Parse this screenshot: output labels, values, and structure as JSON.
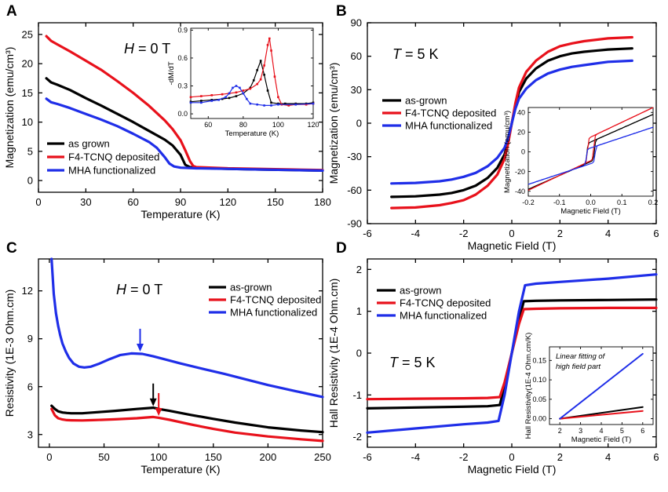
{
  "colors": {
    "black": "#000000",
    "red": "#e8111b",
    "blue": "#1f2ee8",
    "frame": "#000000"
  },
  "panels": [
    {
      "id": "A",
      "label": "A",
      "annotation": {
        "prefix": "H",
        "suffix": " = 0 T"
      }
    },
    {
      "id": "B",
      "label": "B",
      "annotation": {
        "prefix": "T",
        "suffix": " = 5 K"
      }
    },
    {
      "id": "C",
      "label": "C",
      "annotation": {
        "prefix": "H",
        "suffix": " = 0 T"
      }
    },
    {
      "id": "D",
      "label": "D",
      "annotation": {
        "prefix": "T",
        "suffix": " = 5 K"
      }
    }
  ],
  "chart_data": [
    {
      "panel": "A",
      "type": "line",
      "xlabel": "Temperature (K)",
      "ylabel": "Magnetization (emu/cm³)",
      "xlim": [
        0,
        180
      ],
      "ylim": [
        -2,
        27
      ],
      "xticks": [
        0,
        30,
        60,
        90,
        120,
        150,
        180
      ],
      "yticks": [
        0,
        5,
        10,
        15,
        20,
        25
      ],
      "legend_position": "lower-left",
      "series": [
        {
          "name": "as grown",
          "color": "black",
          "x": [
            5,
            8,
            12,
            20,
            30,
            40,
            50,
            60,
            70,
            80,
            85,
            90,
            93,
            96,
            100,
            110,
            120,
            140,
            160,
            180
          ],
          "y": [
            17.5,
            16.8,
            16.4,
            15.5,
            14.1,
            12.8,
            11.4,
            10.0,
            8.5,
            7.0,
            6.0,
            4.4,
            2.7,
            2.3,
            2.2,
            2.1,
            2.0,
            1.9,
            1.8,
            1.7
          ]
        },
        {
          "name": "F4-TCNQ deposited",
          "color": "red",
          "x": [
            5,
            8,
            12,
            20,
            30,
            40,
            50,
            60,
            70,
            80,
            85,
            90,
            93,
            96,
            98,
            100,
            110,
            120,
            140,
            160,
            180
          ],
          "y": [
            24.7,
            23.9,
            23.3,
            22.1,
            20.5,
            18.9,
            17.0,
            15.0,
            12.8,
            10.3,
            8.8,
            6.9,
            5.2,
            3.3,
            2.5,
            2.3,
            2.2,
            2.1,
            2.0,
            1.9,
            1.8
          ]
        },
        {
          "name": "MHA functionalized",
          "color": "blue",
          "x": [
            5,
            8,
            12,
            20,
            30,
            40,
            50,
            60,
            70,
            75,
            80,
            83,
            86,
            90,
            100,
            120,
            140,
            160,
            180
          ],
          "y": [
            14.0,
            13.4,
            13.1,
            12.4,
            11.4,
            10.4,
            9.3,
            8.0,
            6.6,
            5.6,
            4.0,
            2.9,
            2.4,
            2.2,
            2.1,
            2.0,
            1.9,
            1.8,
            1.7
          ]
        }
      ],
      "inset": {
        "xlabel": "Temperature (K)",
        "ylabel": "-dM/dT",
        "xlim": [
          50,
          120
        ],
        "ylim": [
          -0.05,
          0.92
        ],
        "xticks": [
          60,
          80,
          100,
          120
        ],
        "yticks": [
          0.0,
          0.3,
          0.6,
          0.9
        ],
        "series": [
          {
            "name": "as grown",
            "color": "black",
            "x": [
              50,
              56,
              62,
              68,
              72,
              76,
              80,
              84,
              86,
              88,
              90,
              92,
              94,
              96,
              100,
              104,
              110,
              116,
              120
            ],
            "y": [
              0.13,
              0.14,
              0.15,
              0.16,
              0.17,
              0.19,
              0.22,
              0.28,
              0.36,
              0.47,
              0.57,
              0.42,
              0.25,
              0.12,
              0.11,
              0.11,
              0.11,
              0.11,
              0.12
            ]
          },
          {
            "name": "F4-TCNQ deposited",
            "color": "red",
            "x": [
              50,
              56,
              62,
              68,
              72,
              76,
              80,
              84,
              88,
              90,
              92,
              94,
              95,
              96,
              98,
              100,
              102,
              106,
              110,
              116,
              120
            ],
            "y": [
              0.18,
              0.19,
              0.2,
              0.21,
              0.22,
              0.23,
              0.25,
              0.27,
              0.32,
              0.37,
              0.52,
              0.74,
              0.81,
              0.68,
              0.4,
              0.18,
              0.1,
              0.09,
              0.1,
              0.1,
              0.11
            ]
          },
          {
            "name": "MHA functionalized",
            "color": "blue",
            "x": [
              50,
              56,
              62,
              66,
              70,
              72,
              74,
              76,
              78,
              80,
              82,
              84,
              88,
              92,
              96,
              100,
              110,
              120
            ],
            "y": [
              0.12,
              0.12,
              0.14,
              0.15,
              0.18,
              0.22,
              0.28,
              0.3,
              0.28,
              0.22,
              0.16,
              0.11,
              0.1,
              0.09,
              0.09,
              0.1,
              0.1,
              0.11
            ]
          }
        ]
      }
    },
    {
      "panel": "B",
      "type": "line",
      "xlabel": "Magnetic Field (T)",
      "ylabel": "Magnetization (emu/cm³)",
      "xlim": [
        -6,
        6
      ],
      "ylim": [
        -90,
        90
      ],
      "xticks": [
        -6,
        -4,
        -2,
        0,
        2,
        4,
        6
      ],
      "yticks": [
        -90,
        -60,
        -30,
        0,
        30,
        60,
        90
      ],
      "legend_position": "center-left",
      "series": [
        {
          "name": "as-grown",
          "color": "black",
          "x": [
            -5,
            -4,
            -3,
            -2.5,
            -2,
            -1.5,
            -1,
            -0.6,
            -0.3,
            -0.15,
            0,
            0.15,
            0.3,
            0.6,
            1,
            1.5,
            2,
            2.5,
            3,
            4,
            5
          ],
          "y": [
            -66,
            -65.5,
            -64,
            -62.5,
            -60,
            -56,
            -49,
            -40,
            -28,
            -16,
            0,
            16,
            28,
            40,
            49,
            56,
            60,
            62.5,
            64,
            66,
            67
          ]
        },
        {
          "name": "F4-TCNQ deposited",
          "color": "red",
          "x": [
            -5,
            -4,
            -3,
            -2.5,
            -2,
            -1.5,
            -1,
            -0.6,
            -0.3,
            -0.15,
            0,
            0.15,
            0.3,
            0.6,
            1,
            1.5,
            2,
            2.5,
            3,
            4,
            5
          ],
          "y": [
            -76,
            -75.5,
            -73.5,
            -71.5,
            -69,
            -64,
            -56,
            -46,
            -32,
            -18,
            0,
            18,
            32,
            46,
            56,
            64,
            69,
            71.5,
            73.5,
            76,
            77
          ]
        },
        {
          "name": "MHA functionalized",
          "color": "blue",
          "x": [
            -5,
            -4,
            -3,
            -2.5,
            -2,
            -1.5,
            -1,
            -0.6,
            -0.3,
            -0.15,
            0,
            0.15,
            0.3,
            0.6,
            1,
            1.5,
            2,
            2.5,
            3,
            4,
            5
          ],
          "y": [
            -54,
            -53.5,
            -52,
            -50.5,
            -48,
            -44.5,
            -38.5,
            -31,
            -22,
            -13,
            0,
            13,
            22,
            31,
            38.5,
            44.5,
            48,
            50.5,
            52,
            55,
            56
          ]
        }
      ],
      "inset": {
        "xlabel": "Magnetic Field (T)",
        "ylabel": "Magnetization (emu/cm³)",
        "xlim": [
          -0.2,
          0.2
        ],
        "ylim": [
          -45,
          45
        ],
        "xticks": [
          -0.2,
          -0.1,
          0.0,
          0.1,
          0.2
        ],
        "yticks": [
          -40,
          -20,
          0,
          20,
          40
        ],
        "loops": [
          {
            "name": "as-grown",
            "color": "black",
            "slope": 140,
            "jump": 10,
            "hc": 0.012,
            "offset": 0
          },
          {
            "name": "F4-TCNQ deposited",
            "color": "red",
            "slope": 150,
            "jump": 12,
            "hc": 0.01,
            "offset": 3
          },
          {
            "name": "MHA functionalized",
            "color": "blue",
            "slope": 105,
            "jump": 8,
            "hc": 0.014,
            "offset": -4
          }
        ]
      }
    },
    {
      "panel": "C",
      "type": "line",
      "xlabel": "Temperature (K)",
      "ylabel": "Resistivity (1E-3 Ohm.cm)",
      "xlim": [
        -10,
        250
      ],
      "ylim": [
        2.2,
        14
      ],
      "xticks": [
        0,
        50,
        100,
        150,
        200,
        250
      ],
      "yticks": [
        3,
        6,
        9,
        12
      ],
      "legend_position": "top-right",
      "series": [
        {
          "name": "as-grown",
          "color": "black",
          "x": [
            2,
            5,
            8,
            12,
            16,
            20,
            30,
            40,
            60,
            80,
            95,
            100,
            110,
            130,
            150,
            170,
            200,
            230,
            250
          ],
          "y": [
            4.8,
            4.6,
            4.45,
            4.38,
            4.35,
            4.33,
            4.33,
            4.38,
            4.48,
            4.6,
            4.68,
            4.6,
            4.48,
            4.22,
            3.98,
            3.75,
            3.45,
            3.25,
            3.15
          ]
        },
        {
          "name": "F4-TCNQ deposited",
          "color": "red",
          "x": [
            2,
            5,
            8,
            12,
            16,
            20,
            30,
            40,
            60,
            80,
            95,
            100,
            110,
            130,
            150,
            170,
            200,
            230,
            250
          ],
          "y": [
            4.6,
            4.2,
            4.02,
            3.94,
            3.9,
            3.89,
            3.88,
            3.9,
            3.95,
            4.02,
            4.1,
            4.05,
            3.92,
            3.62,
            3.35,
            3.12,
            2.88,
            2.7,
            2.6
          ]
        },
        {
          "name": "MHA functionalized",
          "color": "blue",
          "x": [
            2,
            4,
            6,
            8,
            10,
            12,
            15,
            18,
            22,
            27,
            32,
            38,
            45,
            55,
            65,
            75,
            85,
            95,
            105,
            120,
            140,
            160,
            180,
            200,
            225,
            250
          ],
          "y": [
            14,
            11.8,
            10.6,
            9.8,
            9.2,
            8.7,
            8.2,
            7.8,
            7.45,
            7.25,
            7.2,
            7.25,
            7.42,
            7.72,
            7.98,
            8.08,
            8.05,
            7.9,
            7.72,
            7.45,
            7.12,
            6.8,
            6.45,
            6.1,
            5.72,
            5.35
          ]
        }
      ],
      "markers": [
        {
          "name": "arrow-blue",
          "color": "blue",
          "x": 83,
          "y": 8.15
        },
        {
          "name": "arrow-black",
          "color": "black",
          "x": 95,
          "y": 4.72
        },
        {
          "name": "arrow-red",
          "color": "red",
          "x": 100,
          "y": 4.12
        }
      ]
    },
    {
      "panel": "D",
      "type": "line",
      "xlabel": "Magnetic Field (T)",
      "ylabel": "Hall Resistivity (1E-4 Ohm.cm)",
      "xlim": [
        -6,
        6
      ],
      "ylim": [
        -2.25,
        2.25
      ],
      "xticks": [
        -6,
        -4,
        -2,
        0,
        2,
        4,
        6
      ],
      "yticks": [
        -2,
        -1,
        0,
        1,
        2
      ],
      "legend_position": "top-left",
      "series": [
        {
          "name": "as-grown",
          "color": "black",
          "x": [
            -6,
            -4,
            -2,
            -1,
            -0.5,
            -0.3,
            0,
            0.3,
            0.5,
            1,
            2,
            4,
            6
          ],
          "y": [
            -1.32,
            -1.3,
            -1.28,
            -1.27,
            -1.24,
            -0.8,
            0,
            0.8,
            1.24,
            1.25,
            1.26,
            1.27,
            1.28
          ]
        },
        {
          "name": "F4-TCNQ deposited",
          "color": "red",
          "x": [
            -6,
            -4,
            -2,
            -1,
            -0.5,
            -0.3,
            0,
            0.3,
            0.5,
            1,
            2,
            4,
            6
          ],
          "y": [
            -1.1,
            -1.09,
            -1.08,
            -1.07,
            -1.05,
            -0.7,
            0,
            0.7,
            1.05,
            1.06,
            1.07,
            1.08,
            1.08
          ]
        },
        {
          "name": "MHA functionalized",
          "color": "blue",
          "x": [
            -6,
            -4,
            -2,
            -1,
            -0.55,
            -0.3,
            0,
            0.3,
            0.55,
            1,
            2,
            4,
            6
          ],
          "y": [
            -1.9,
            -1.8,
            -1.7,
            -1.66,
            -1.62,
            -1.0,
            0,
            1.0,
            1.62,
            1.66,
            1.7,
            1.78,
            1.88
          ]
        }
      ],
      "inset": {
        "xlabel": "Magnetic Field (T)",
        "ylabel": "Hall Resistivity(1E-4 Ohm.cm/K)",
        "xlim": [
          1.5,
          6.5
        ],
        "ylim": [
          -0.015,
          0.185
        ],
        "xticks": [
          2,
          3,
          4,
          5,
          6
        ],
        "yticks": [
          0.0,
          0.05,
          0.1,
          0.15
        ],
        "annotation_lines": [
          "Linear fitting of",
          "high field part"
        ],
        "series": [
          {
            "name": "as-grown",
            "color": "black",
            "x": [
              2,
              6
            ],
            "y": [
              0,
              0.03
            ]
          },
          {
            "name": "F4-TCNQ deposited",
            "color": "red",
            "x": [
              2,
              6
            ],
            "y": [
              0,
              0.02
            ]
          },
          {
            "name": "MHA functionalized",
            "color": "blue",
            "x": [
              2,
              6
            ],
            "y": [
              0,
              0.167
            ]
          }
        ]
      }
    }
  ]
}
